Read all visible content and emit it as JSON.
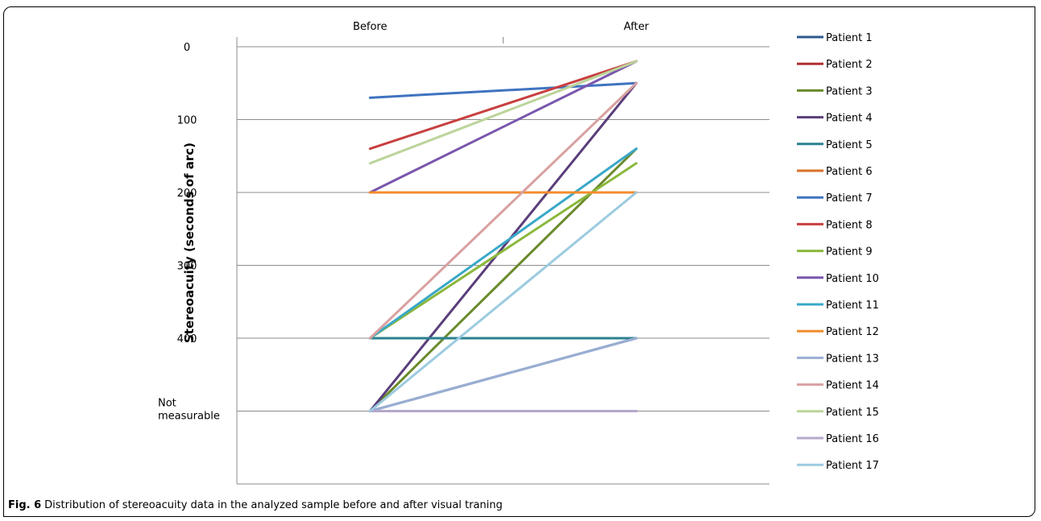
{
  "caption": {
    "label": "Fig. 6",
    "text": "Distribution of stereoacuity data in the analyzed sample before and after visual traning"
  },
  "chart_data": {
    "type": "line",
    "title": "",
    "xlabel": "",
    "ylabel": "Stereoacuity (seconds of arc)",
    "categories": [
      "Before",
      "After"
    ],
    "yticks": [
      {
        "value": 0,
        "label": "0"
      },
      {
        "value": 100,
        "label": "100"
      },
      {
        "value": 200,
        "label": "200"
      },
      {
        "value": 300,
        "label": "300"
      },
      {
        "value": 400,
        "label": "400"
      },
      {
        "value": 500,
        "label": "Not measurable"
      }
    ],
    "ylim": [
      0,
      600
    ],
    "y_reversed": true,
    "grid": true,
    "legend": "right",
    "series": [
      {
        "name": "Patient 1",
        "color": "#2c5a8c",
        "values": [
          500,
          400
        ]
      },
      {
        "name": "Patient 2",
        "color": "#b03030",
        "values": [
          500,
          500
        ]
      },
      {
        "name": "Patient 3",
        "color": "#6a8a2c",
        "values": [
          500,
          140
        ]
      },
      {
        "name": "Patient 4",
        "color": "#5a3e7a",
        "values": [
          500,
          50
        ]
      },
      {
        "name": "Patient 5",
        "color": "#2a8090",
        "values": [
          400,
          400
        ]
      },
      {
        "name": "Patient 6",
        "color": "#d9712a",
        "values": [
          200,
          200
        ]
      },
      {
        "name": "Patient 7",
        "color": "#3f73c0",
        "values": [
          70,
          50
        ]
      },
      {
        "name": "Patient 8",
        "color": "#c84040",
        "values": [
          140,
          20
        ]
      },
      {
        "name": "Patient 9",
        "color": "#8ab83c",
        "values": [
          400,
          160
        ]
      },
      {
        "name": "Patient 10",
        "color": "#7a56ad",
        "values": [
          200,
          20
        ]
      },
      {
        "name": "Patient 11",
        "color": "#3aa8c8",
        "values": [
          400,
          140
        ]
      },
      {
        "name": "Patient 12",
        "color": "#f28c2e",
        "values": [
          200,
          200
        ]
      },
      {
        "name": "Patient 13",
        "color": "#9aaed2",
        "values": [
          500,
          400
        ]
      },
      {
        "name": "Patient 14",
        "color": "#d9a0a0",
        "values": [
          400,
          50
        ]
      },
      {
        "name": "Patient 15",
        "color": "#bcd49a",
        "values": [
          160,
          20
        ]
      },
      {
        "name": "Patient 16",
        "color": "#b4a8cc",
        "values": [
          500,
          500
        ]
      },
      {
        "name": "Patient 17",
        "color": "#9ccbe0",
        "values": [
          500,
          200
        ]
      }
    ]
  }
}
